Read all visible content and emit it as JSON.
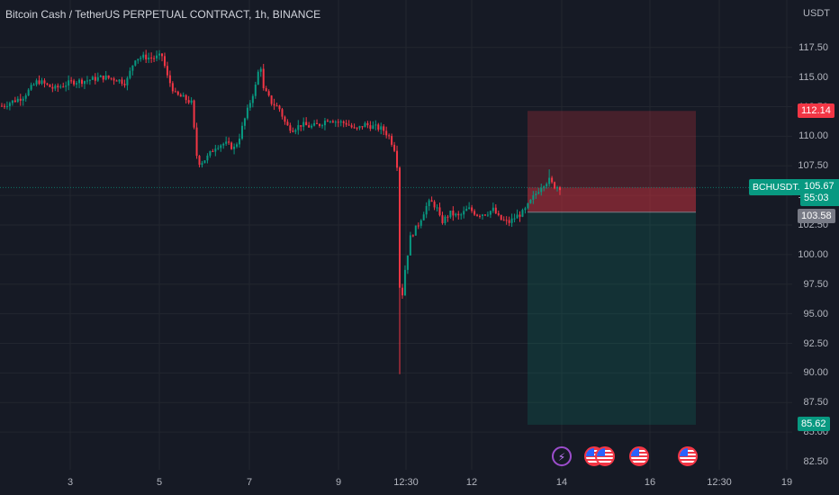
{
  "title": "Bitcoin Cash / TetherUS PERPETUAL CONTRACT, 1h, BINANCE",
  "axis_unit": "USDT",
  "colors": {
    "background": "#161a25",
    "up": "#089981",
    "down": "#f23645",
    "grid": "#22262f",
    "stop_zone": "rgba(242,54,69,0.22)",
    "target_zone": "rgba(8,153,129,0.18)"
  },
  "price_tags": {
    "stop": "112.14",
    "symbol": "BCHUSDT.P",
    "current": "105.67",
    "countdown": "55:03",
    "entry": "103.58",
    "target": "85.62"
  },
  "events": [
    {
      "icon": "lightning-icon"
    },
    {
      "icon": "us-flag-icon"
    },
    {
      "icon": "us-flag-icon"
    },
    {
      "icon": "us-flag-icon"
    },
    {
      "icon": "us-flag-icon"
    }
  ],
  "chart_data": {
    "type": "candlestick",
    "title": "Bitcoin Cash / TetherUS PERPETUAL CONTRACT, 1h, BINANCE",
    "ylabel": "USDT",
    "ylim": [
      82.5,
      120
    ],
    "y_ticks": [
      "82.50",
      "85.00",
      "87.50",
      "90.00",
      "92.50",
      "95.00",
      "97.50",
      "100.00",
      "102.50",
      "105.00",
      "107.50",
      "110.00",
      "112.50",
      "115.00",
      "117.50"
    ],
    "x_ticks": [
      "3",
      "5",
      "7",
      "9",
      "12:30",
      "12",
      "14",
      "16",
      "12:30",
      "19"
    ],
    "grid": true,
    "price_path": [
      [
        0,
        112.5
      ],
      [
        25,
        113.3
      ],
      [
        42,
        114.7
      ],
      [
        60,
        114.0
      ],
      [
        80,
        114.6
      ],
      [
        95,
        114.7
      ],
      [
        115,
        115.0
      ],
      [
        130,
        114.8
      ],
      [
        140,
        114.5
      ],
      [
        150,
        116.6
      ],
      [
        160,
        116.7
      ],
      [
        170,
        116.6
      ],
      [
        180,
        116.8
      ],
      [
        186,
        115.0
      ],
      [
        195,
        113.5
      ],
      [
        205,
        113.2
      ],
      [
        213,
        112.8
      ],
      [
        218,
        108.5
      ],
      [
        222,
        107.7
      ],
      [
        230,
        108.2
      ],
      [
        240,
        109.2
      ],
      [
        250,
        109.4
      ],
      [
        260,
        109.0
      ],
      [
        265,
        109.7
      ],
      [
        270,
        111.0
      ],
      [
        280,
        113.4
      ],
      [
        285,
        114.5
      ],
      [
        289,
        116.5
      ],
      [
        292,
        114.0
      ],
      [
        296,
        113.6
      ],
      [
        302,
        112.8
      ],
      [
        310,
        112.4
      ],
      [
        318,
        110.9
      ],
      [
        325,
        110.6
      ],
      [
        335,
        111.0
      ],
      [
        345,
        110.8
      ],
      [
        355,
        111.0
      ],
      [
        365,
        111.5
      ],
      [
        375,
        111.2
      ],
      [
        385,
        111.1
      ],
      [
        395,
        110.5
      ],
      [
        405,
        111.0
      ],
      [
        415,
        110.8
      ],
      [
        425,
        110.6
      ],
      [
        432,
        110.0
      ],
      [
        438,
        109.0
      ],
      [
        441,
        107.8
      ],
      [
        443,
        98.0
      ],
      [
        446,
        96.0
      ],
      [
        450,
        98.8
      ],
      [
        456,
        101.5
      ],
      [
        465,
        102.6
      ],
      [
        473,
        104.0
      ],
      [
        478,
        104.5
      ],
      [
        485,
        104.0
      ],
      [
        490,
        102.7
      ],
      [
        500,
        103.5
      ],
      [
        510,
        103.2
      ],
      [
        520,
        103.9
      ],
      [
        530,
        103.4
      ],
      [
        540,
        103.5
      ],
      [
        548,
        103.8
      ],
      [
        555,
        103.0
      ],
      [
        565,
        102.7
      ],
      [
        573,
        103.2
      ],
      [
        582,
        103.6
      ],
      [
        592,
        104.8
      ],
      [
        602,
        105.9
      ],
      [
        610,
        106.3
      ],
      [
        615,
        105.8
      ],
      [
        622,
        105.7
      ]
    ],
    "candle_count": 210,
    "annotations": {
      "position": "short",
      "stop_price": 112.14,
      "entry_price": 103.58,
      "target_price": 85.62,
      "last_price": 105.67,
      "low_wick": 89.9,
      "events_row": "bottom"
    }
  }
}
